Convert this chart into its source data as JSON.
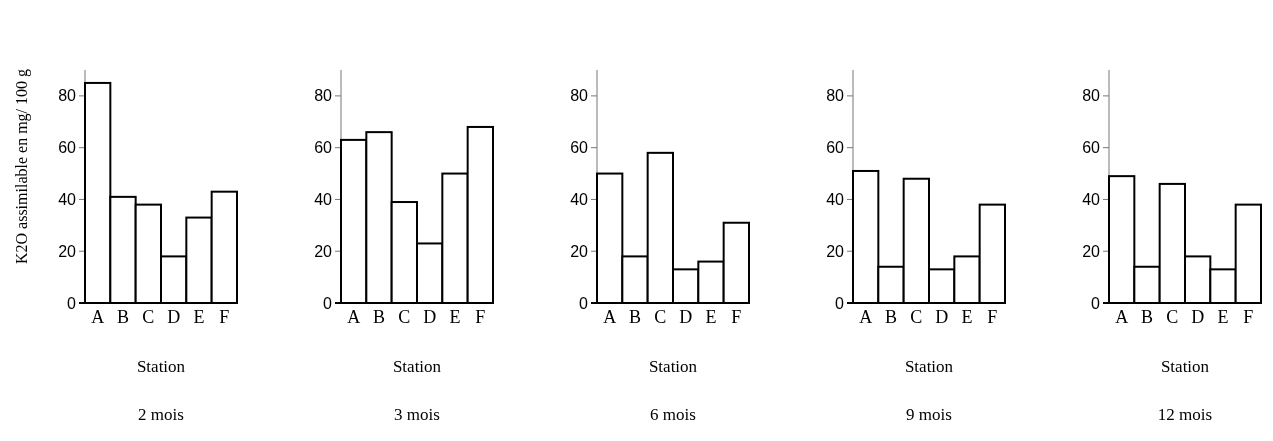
{
  "chart_data": [
    {
      "type": "bar",
      "title": "2 mois",
      "xlabel": "Station",
      "ylabel": "K2O assimilable en mg/ 100 g",
      "categories": [
        "A",
        "B",
        "C",
        "D",
        "E",
        "F"
      ],
      "values": [
        85,
        41,
        38,
        18,
        33,
        43
      ],
      "color": "#ffffff",
      "ylim": [
        0,
        90
      ],
      "yticks": [
        0,
        20,
        40,
        60,
        80
      ],
      "grid": false
    },
    {
      "type": "bar",
      "title": "3 mois",
      "xlabel": "Station",
      "categories": [
        "A",
        "B",
        "C",
        "D",
        "E",
        "F"
      ],
      "values": [
        63,
        66,
        39,
        23,
        50,
        68
      ],
      "color": "#ffffff",
      "ylim": [
        0,
        90
      ],
      "yticks": [
        0,
        20,
        40,
        60,
        80
      ],
      "grid": false
    },
    {
      "type": "bar",
      "title": "6 mois",
      "xlabel": "Station",
      "categories": [
        "A",
        "B",
        "C",
        "D",
        "E",
        "F"
      ],
      "values": [
        50,
        18,
        58,
        13,
        16,
        31
      ],
      "color": "#ffffff",
      "ylim": [
        0,
        90
      ],
      "yticks": [
        0,
        20,
        40,
        60,
        80
      ],
      "grid": false
    },
    {
      "type": "bar",
      "title": "9 mois",
      "xlabel": "Station",
      "categories": [
        "A",
        "B",
        "C",
        "D",
        "E",
        "F"
      ],
      "values": [
        51,
        14,
        48,
        13,
        18,
        38
      ],
      "color": "#ffffff",
      "ylim": [
        0,
        90
      ],
      "yticks": [
        0,
        20,
        40,
        60,
        80
      ],
      "grid": false
    },
    {
      "type": "bar",
      "title": "12 mois",
      "xlabel": "Station",
      "categories": [
        "A",
        "B",
        "C",
        "D",
        "E",
        "F"
      ],
      "values": [
        49,
        14,
        46,
        18,
        13,
        38
      ],
      "color": "#ffffff",
      "ylim": [
        0,
        90
      ],
      "yticks": [
        0,
        20,
        40,
        60,
        80
      ],
      "grid": false
    }
  ]
}
